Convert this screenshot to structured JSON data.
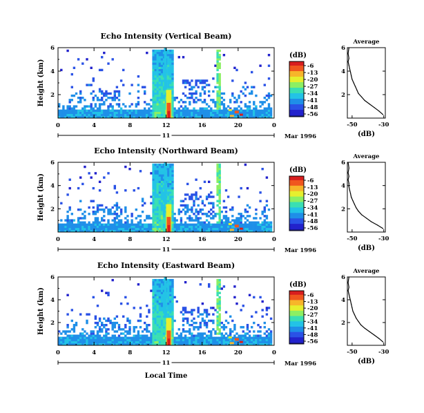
{
  "colors": {
    "colormap": [
      "#1a1a8c",
      "#2222cc",
      "#2a52e6",
      "#1f8fe8",
      "#23c3e6",
      "#3adfb3",
      "#8cef63",
      "#e6ef2e",
      "#f7b52a",
      "#f0561e",
      "#d81e1e"
    ]
  },
  "chart_data": [
    {
      "type": "heatmap",
      "title": "Echo Intensity (Vertical Beam)",
      "ylabel": "Height (km)",
      "yticks": [
        "6",
        "4",
        "2"
      ],
      "y_range_km": [
        0,
        6
      ],
      "xticks": [
        "0",
        "4",
        "8",
        "12",
        "16",
        "20",
        "0"
      ],
      "x_range_hours": [
        0,
        24
      ],
      "date_label": "11",
      "month_year": "Mar 1996",
      "colorbar": {
        "unit": "(dB)",
        "labels": [
          "-6",
          "-13",
          "-20",
          "-27",
          "-34",
          "-41",
          "-48",
          "-56"
        ],
        "range": [
          -56,
          -6
        ]
      },
      "features": {
        "strong_column_hours": [
          12.0,
          12.6
        ],
        "secondary_column_hour": 18.0,
        "surface_hotspot_hour": 20.0
      },
      "profile": {
        "title": "Average",
        "xlabel": "(dB)",
        "xticks": [
          "-50",
          "-30"
        ],
        "xlim": [
          -53,
          -29
        ],
        "yticks": [
          "6",
          "4",
          "2"
        ],
        "ylim": [
          0,
          6
        ],
        "x": [
          -30.5,
          -33,
          -36,
          -39,
          -42,
          -44,
          -46,
          -47,
          -48,
          -49,
          -50,
          -50.5,
          -51,
          -51.5,
          -52,
          -52.5,
          -52,
          -52.5,
          -52
        ],
        "y": [
          0.3,
          0.6,
          0.9,
          1.2,
          1.5,
          1.8,
          2.1,
          2.4,
          2.7,
          3.0,
          3.3,
          3.6,
          3.9,
          4.2,
          4.5,
          4.8,
          5.1,
          5.5,
          6.0
        ]
      }
    },
    {
      "type": "heatmap",
      "title": "Echo Intensity (Northward Beam)",
      "ylabel": "Height (km)",
      "yticks": [
        "6",
        "4",
        "2"
      ],
      "y_range_km": [
        0,
        6
      ],
      "xticks": [
        "0",
        "4",
        "8",
        "12",
        "16",
        "20",
        "0"
      ],
      "x_range_hours": [
        0,
        24
      ],
      "date_label": "11",
      "month_year": "Mar 1996",
      "colorbar": {
        "unit": "(dB)",
        "labels": [
          "-6",
          "-13",
          "-20",
          "-27",
          "-34",
          "-41",
          "-48",
          "-56"
        ],
        "range": [
          -56,
          -6
        ]
      },
      "features": {
        "strong_column_hours": [
          12.0,
          12.6
        ],
        "secondary_column_hour": 18.0,
        "surface_hotspot_hour": 20.0
      },
      "profile": {
        "title": "Average",
        "xlabel": "(dB)",
        "xticks": [
          "-50",
          "-30"
        ],
        "xlim": [
          -53,
          -29
        ],
        "yticks": [
          "6",
          "4",
          "2"
        ],
        "ylim": [
          0,
          6
        ],
        "x": [
          -30.5,
          -34,
          -38,
          -41,
          -44,
          -46,
          -47.5,
          -48.5,
          -49.5,
          -50.5,
          -51,
          -51.5,
          -52,
          -52,
          -52.5,
          -52,
          -52.5,
          -52,
          -52.5
        ],
        "y": [
          0.3,
          0.6,
          0.9,
          1.2,
          1.5,
          1.8,
          2.1,
          2.4,
          2.7,
          3.0,
          3.3,
          3.6,
          3.9,
          4.2,
          4.5,
          4.8,
          5.1,
          5.5,
          6.0
        ]
      }
    },
    {
      "type": "heatmap",
      "title": "Echo Intensity (Eastward Beam)",
      "ylabel": "Height (km)",
      "yticks": [
        "6",
        "4",
        "2"
      ],
      "y_range_km": [
        0,
        6
      ],
      "xticks": [
        "0",
        "4",
        "8",
        "12",
        "16",
        "20",
        "0"
      ],
      "x_range_hours": [
        0,
        24
      ],
      "date_label": "11",
      "month_year": "Mar 1996",
      "xlabel": "Local Time",
      "colorbar": {
        "unit": "(dB)",
        "labels": [
          "-6",
          "-13",
          "-20",
          "-27",
          "-34",
          "-41",
          "-48",
          "-56"
        ],
        "range": [
          -56,
          -6
        ]
      },
      "features": {
        "strong_column_hours": [
          12.0,
          12.6
        ],
        "secondary_column_hour": 18.0,
        "surface_hotspot_hour": 20.0
      },
      "profile": {
        "title": "Average",
        "xlabel": "(dB)",
        "xticks": [
          "-50",
          "-30"
        ],
        "xlim": [
          -53,
          -29
        ],
        "yticks": [
          "6",
          "4",
          "2"
        ],
        "ylim": [
          0,
          6
        ],
        "x": [
          -30.5,
          -33,
          -36,
          -39,
          -42,
          -44.5,
          -46,
          -47.5,
          -48.5,
          -49.5,
          -50,
          -50.5,
          -51,
          -51.5,
          -52,
          -52.5,
          -52,
          -52.5,
          -52
        ],
        "y": [
          0.3,
          0.6,
          0.9,
          1.2,
          1.5,
          1.8,
          2.1,
          2.4,
          2.7,
          3.0,
          3.3,
          3.6,
          3.9,
          4.2,
          4.5,
          4.8,
          5.1,
          5.5,
          6.0
        ]
      }
    }
  ]
}
